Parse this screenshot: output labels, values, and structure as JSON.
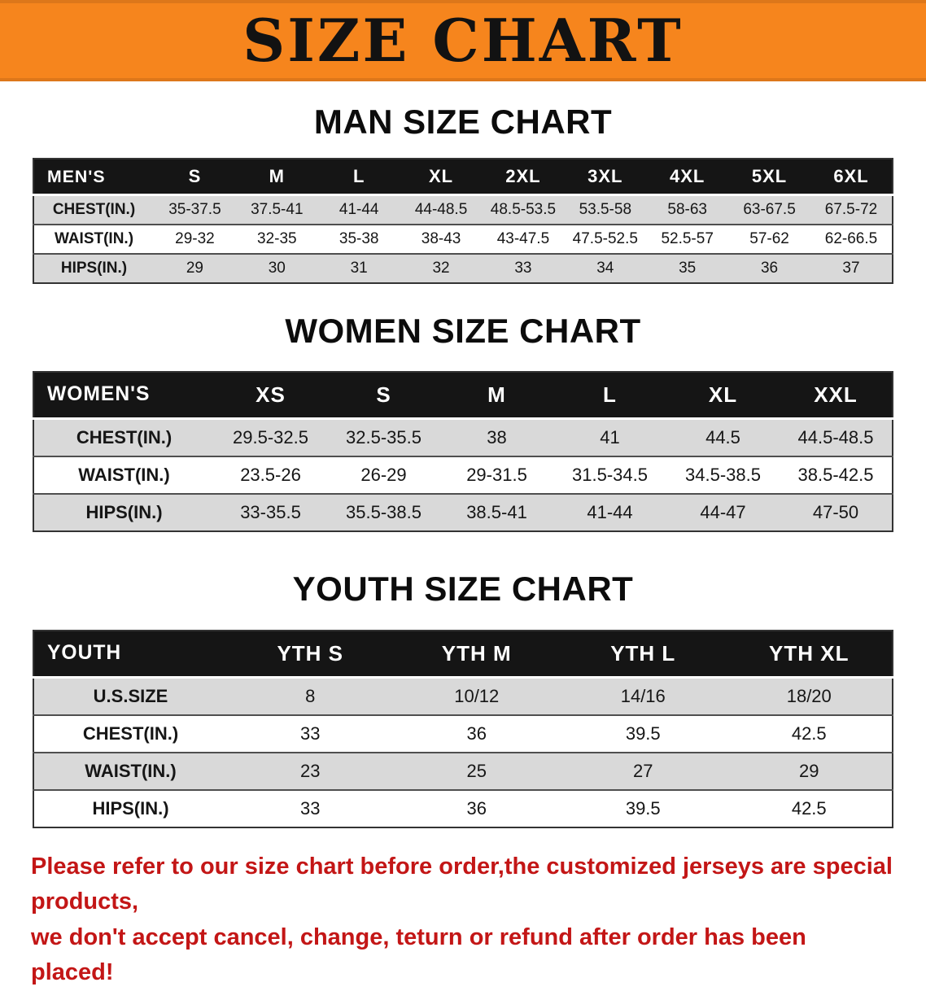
{
  "colors": {
    "banner-bg": "#f6851d",
    "banner-text": "#121212",
    "table-header-bg": "#151515",
    "table-header-text": "#ffffff",
    "row-stripe": "#d9d9d9",
    "disclaimer-red": "#c31616"
  },
  "banner": {
    "title": "SIZE CHART"
  },
  "sections": [
    {
      "id": "men",
      "heading": "MAN SIZE CHART",
      "table": {
        "header": [
          "MEN'S",
          "S",
          "M",
          "L",
          "XL",
          "2XL",
          "3XL",
          "4XL",
          "5XL",
          "6XL"
        ],
        "rows": [
          {
            "label": "CHEST(IN.)",
            "values": [
              "35-37.5",
              "37.5-41",
              "41-44",
              "44-48.5",
              "48.5-53.5",
              "53.5-58",
              "58-63",
              "63-67.5",
              "67.5-72"
            ]
          },
          {
            "label": "WAIST(IN.)",
            "values": [
              "29-32",
              "32-35",
              "35-38",
              "38-43",
              "43-47.5",
              "47.5-52.5",
              "52.5-57",
              "57-62",
              "62-66.5"
            ]
          },
          {
            "label": "HIPS(IN.)",
            "values": [
              "29",
              "30",
              "31",
              "32",
              "33",
              "34",
              "35",
              "36",
              "37"
            ]
          }
        ]
      }
    },
    {
      "id": "women",
      "heading": "WOMEN SIZE CHART",
      "table": {
        "header": [
          "WOMEN'S",
          "XS",
          "S",
          "M",
          "L",
          "XL",
          "XXL"
        ],
        "rows": [
          {
            "label": "CHEST(IN.)",
            "values": [
              "29.5-32.5",
              "32.5-35.5",
              "38",
              "41",
              "44.5",
              "44.5-48.5"
            ]
          },
          {
            "label": "WAIST(IN.)",
            "values": [
              "23.5-26",
              "26-29",
              "29-31.5",
              "31.5-34.5",
              "34.5-38.5",
              "38.5-42.5"
            ]
          },
          {
            "label": "HIPS(IN.)",
            "values": [
              "33-35.5",
              "35.5-38.5",
              "38.5-41",
              "41-44",
              "44-47",
              "47-50"
            ]
          }
        ]
      }
    },
    {
      "id": "youth",
      "heading": "YOUTH SIZE CHART",
      "table": {
        "header": [
          "YOUTH",
          "YTH S",
          "YTH M",
          "YTH L",
          "YTH XL"
        ],
        "rows": [
          {
            "label": "U.S.SIZE",
            "values": [
              "8",
              "10/12",
              "14/16",
              "18/20"
            ]
          },
          {
            "label": "CHEST(IN.)",
            "values": [
              "33",
              "36",
              "39.5",
              "42.5"
            ]
          },
          {
            "label": "WAIST(IN.)",
            "values": [
              "23",
              "25",
              "27",
              "29"
            ]
          },
          {
            "label": "HIPS(IN.)",
            "values": [
              "33",
              "36",
              "39.5",
              "42.5"
            ]
          }
        ]
      }
    }
  ],
  "disclaimer": {
    "lines": [
      "Please refer to our size chart before order,the customized jerseys are special products,",
      "we don't accept cancel, change, teturn or refund after order has been placed!"
    ]
  }
}
